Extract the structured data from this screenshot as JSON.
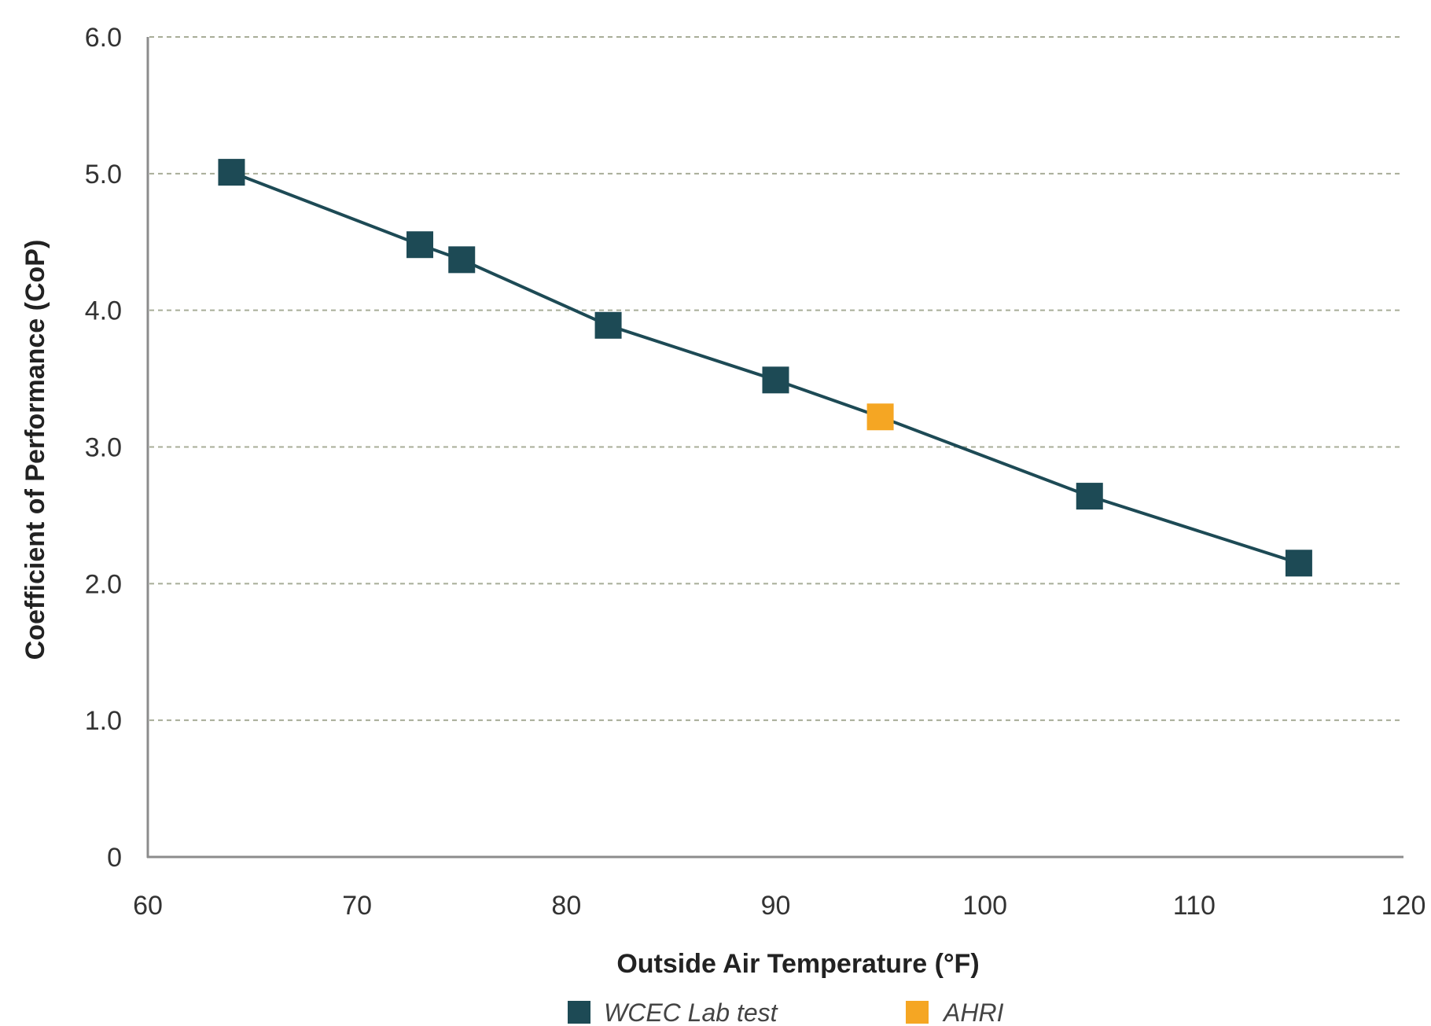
{
  "chart_data": {
    "type": "line",
    "title": "",
    "xlabel": "Outside Air Temperature (°F)",
    "ylabel": "Coefficient of Performance (CoP)",
    "xlim": [
      60,
      120
    ],
    "ylim": [
      0,
      6
    ],
    "x_ticks": [
      {
        "value": 60,
        "label": "60"
      },
      {
        "value": 70,
        "label": "70"
      },
      {
        "value": 80,
        "label": "80"
      },
      {
        "value": 90,
        "label": "90"
      },
      {
        "value": 100,
        "label": "100"
      },
      {
        "value": 110,
        "label": "110"
      },
      {
        "value": 120,
        "label": "120"
      }
    ],
    "y_ticks": [
      {
        "value": 0,
        "label": "0"
      },
      {
        "value": 1,
        "label": "1.0"
      },
      {
        "value": 2,
        "label": "2.0"
      },
      {
        "value": 3,
        "label": "3.0"
      },
      {
        "value": 4,
        "label": "4.0"
      },
      {
        "value": 5,
        "label": "5.0"
      },
      {
        "value": 6,
        "label": "6.0"
      }
    ],
    "grid": "horizontal-dashed",
    "legend_position": "bottom",
    "colors": {
      "line": "#1d4a55",
      "axis": "#8c8c8c",
      "grid": "#a8ad98"
    },
    "line": {
      "x": [
        64,
        73,
        75,
        82,
        90,
        95,
        105,
        115
      ],
      "y": [
        5.01,
        4.48,
        4.37,
        3.89,
        3.49,
        3.22,
        2.64,
        2.15
      ]
    },
    "series": [
      {
        "name": "WCEC Lab test",
        "color": "#1d4a55",
        "marker": "square",
        "x": [
          64,
          73,
          75,
          82,
          90,
          105,
          115
        ],
        "y": [
          5.01,
          4.48,
          4.37,
          3.89,
          3.49,
          2.64,
          2.15
        ]
      },
      {
        "name": "AHRI",
        "color": "#f5a623",
        "marker": "square",
        "x": [
          95
        ],
        "y": [
          3.22
        ]
      }
    ]
  }
}
